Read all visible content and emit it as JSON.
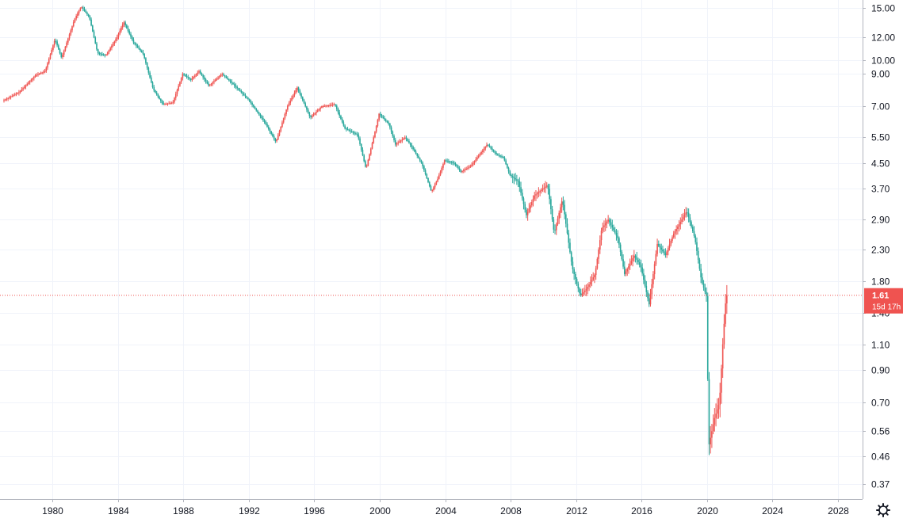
{
  "colors": {
    "up": "#ef5350",
    "down": "#26a69a",
    "grid": "#f0f3fa",
    "axis_line": "#b2b5be",
    "price_line": "#ef5350",
    "label_bg": "#ef5350"
  },
  "last_price": {
    "value": 1.61,
    "label": "1.61",
    "countdown": "15d 17h"
  },
  "settings_icon": "gear-icon",
  "chart_data": {
    "type": "candlestick",
    "title": "",
    "xlabel": "",
    "ylabel": "",
    "y_scale": "log",
    "ylim": [
      0.33,
      16.0
    ],
    "xlim": [
      1976.8,
      2029.5
    ],
    "grid": true,
    "x_ticks": [
      "1980",
      "1984",
      "1988",
      "1992",
      "1996",
      "2000",
      "2004",
      "2008",
      "2012",
      "2016",
      "2020",
      "2024",
      "2028"
    ],
    "y_ticks": [
      "15.00",
      "12.00",
      "10.00",
      "9.00",
      "7.00",
      "5.50",
      "4.50",
      "3.70",
      "2.90",
      "2.30",
      "1.80",
      "1.40",
      "1.10",
      "0.90",
      "0.70",
      "0.56",
      "0.46",
      "0.37"
    ],
    "trend": [
      [
        1977.0,
        7.3
      ],
      [
        1978.0,
        7.8
      ],
      [
        1979.0,
        8.9
      ],
      [
        1979.6,
        9.2
      ],
      [
        1980.2,
        11.8
      ],
      [
        1980.6,
        10.2
      ],
      [
        1981.4,
        13.8
      ],
      [
        1981.8,
        15.2
      ],
      [
        1982.3,
        14.0
      ],
      [
        1982.8,
        10.6
      ],
      [
        1983.3,
        10.4
      ],
      [
        1984.0,
        12.0
      ],
      [
        1984.4,
        13.5
      ],
      [
        1985.0,
        11.5
      ],
      [
        1985.6,
        10.5
      ],
      [
        1986.2,
        8.0
      ],
      [
        1986.8,
        7.1
      ],
      [
        1987.4,
        7.2
      ],
      [
        1988.0,
        9.0
      ],
      [
        1988.5,
        8.6
      ],
      [
        1989.0,
        9.2
      ],
      [
        1989.6,
        8.2
      ],
      [
        1990.4,
        9.0
      ],
      [
        1991.0,
        8.4
      ],
      [
        1992.0,
        7.4
      ],
      [
        1993.0,
        6.2
      ],
      [
        1993.7,
        5.3
      ],
      [
        1994.4,
        7.0
      ],
      [
        1995.0,
        8.1
      ],
      [
        1995.8,
        6.4
      ],
      [
        1996.5,
        7.0
      ],
      [
        1997.3,
        7.1
      ],
      [
        1997.9,
        5.9
      ],
      [
        1998.7,
        5.6
      ],
      [
        1999.2,
        4.3
      ],
      [
        1999.8,
        5.9
      ],
      [
        2000.0,
        6.6
      ],
      [
        2000.6,
        6.1
      ],
      [
        2001.0,
        5.2
      ],
      [
        2001.6,
        5.5
      ],
      [
        2002.0,
        5.1
      ],
      [
        2002.6,
        4.5
      ],
      [
        2003.2,
        3.6
      ],
      [
        2003.6,
        4.0
      ],
      [
        2004.0,
        4.6
      ],
      [
        2004.6,
        4.5
      ],
      [
        2005.0,
        4.2
      ],
      [
        2005.6,
        4.4
      ],
      [
        2006.0,
        4.7
      ],
      [
        2006.6,
        5.2
      ],
      [
        2007.2,
        4.8
      ],
      [
        2007.6,
        4.7
      ],
      [
        2008.0,
        4.1
      ],
      [
        2008.5,
        3.9
      ],
      [
        2009.0,
        3.0
      ],
      [
        2009.5,
        3.5
      ],
      [
        2010.3,
        3.8
      ],
      [
        2010.7,
        2.6
      ],
      [
        2011.2,
        3.4
      ],
      [
        2011.8,
        2.0
      ],
      [
        2012.3,
        1.6
      ],
      [
        2012.7,
        1.7
      ],
      [
        2013.2,
        1.9
      ],
      [
        2013.6,
        2.7
      ],
      [
        2014.0,
        2.9
      ],
      [
        2014.6,
        2.5
      ],
      [
        2015.0,
        1.9
      ],
      [
        2015.6,
        2.2
      ],
      [
        2016.0,
        2.0
      ],
      [
        2016.5,
        1.5
      ],
      [
        2017.0,
        2.4
      ],
      [
        2017.5,
        2.2
      ],
      [
        2018.0,
        2.6
      ],
      [
        2018.8,
        3.1
      ],
      [
        2019.3,
        2.5
      ],
      [
        2019.7,
        1.8
      ],
      [
        2020.0,
        1.6
      ],
      [
        2020.15,
        0.5
      ],
      [
        2020.5,
        0.62
      ],
      [
        2020.8,
        0.7
      ],
      [
        2021.0,
        1.1
      ],
      [
        2021.2,
        1.61
      ]
    ]
  }
}
